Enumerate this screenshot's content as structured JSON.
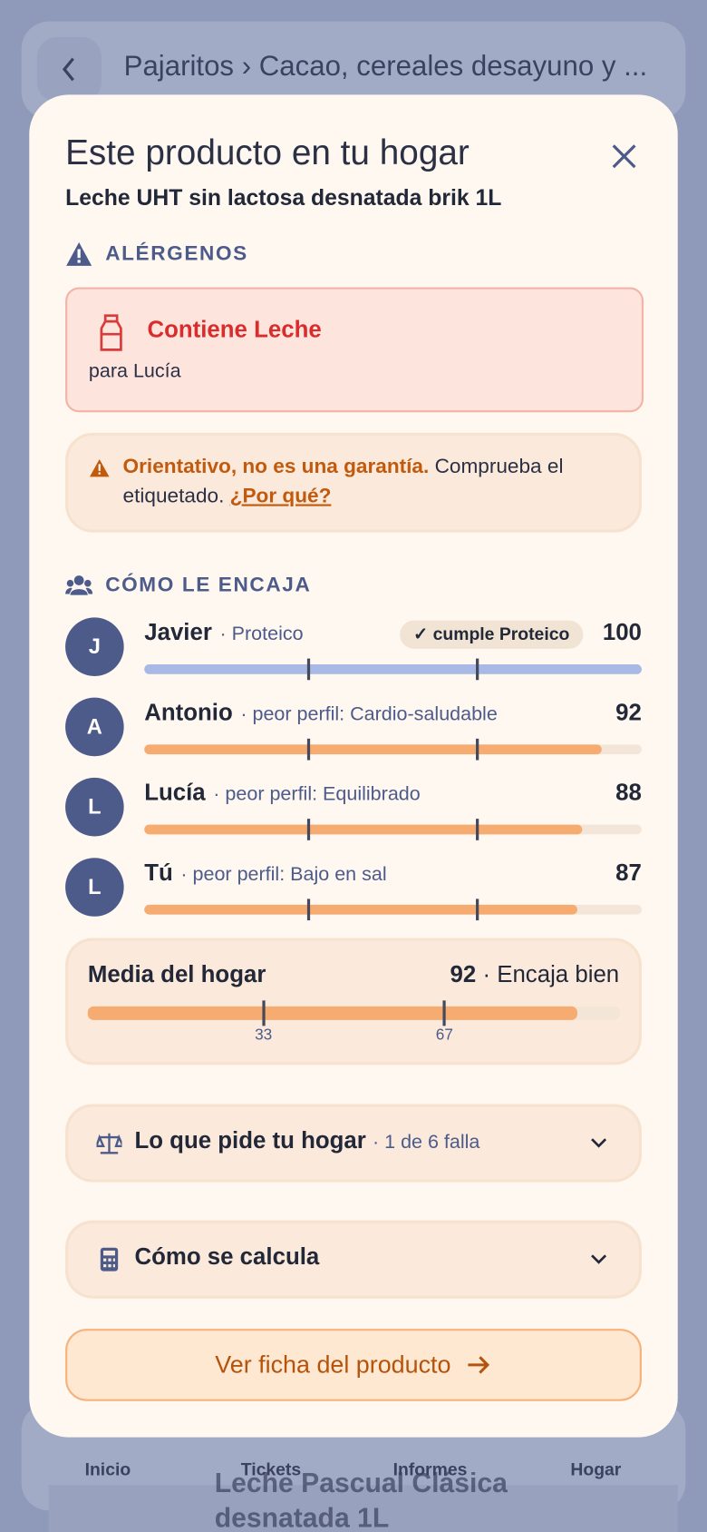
{
  "background": {
    "breadcrumb": "Pajaritos › Cacao, cereales desayuno y ...",
    "nav": [
      "Inicio",
      "Tickets",
      "Informes",
      "Hogar"
    ],
    "product": "Leche Pascual Clásica desnatada 1L"
  },
  "modal": {
    "title": "Este producto en tu hogar",
    "product": "Leche UHT sin lactosa desnatada brik 1L",
    "allergens": {
      "heading": "ALÉRGENOS",
      "alert": "Contiene Leche",
      "for": "para Lucía"
    },
    "notice": {
      "strong": "Orientativo, no es una garantía.",
      "text": "Comprueba el etiquetado.",
      "link": "¿Por qué?"
    },
    "fit": {
      "heading": "CÓMO LE ENCAJA",
      "range": [
        0,
        100
      ],
      "thresholds": [
        33,
        67
      ],
      "members": [
        {
          "initial": "J",
          "name": "Javier",
          "profile": "· Proteico",
          "badge": "✓ cumple Proteico",
          "score": 100,
          "color": "#a8b9e6"
        },
        {
          "initial": "A",
          "name": "Antonio",
          "profile": "· peor perfil: Cardio-saludable",
          "score": 92,
          "color": "#f6ab70"
        },
        {
          "initial": "L",
          "name": "Lucía",
          "profile": "· peor perfil: Equilibrado",
          "score": 88,
          "color": "#f6ab70"
        },
        {
          "initial": "L",
          "name": "Tú",
          "profile": "· peor perfil: Bajo en sal",
          "score": 87,
          "color": "#f6ab70"
        }
      ]
    },
    "average": {
      "label": "Media del hogar",
      "score": 92,
      "verdict": "· Encaja bien",
      "color": "#f6ab70"
    },
    "sections": [
      {
        "title": "Lo que pide tu hogar",
        "meta": "· 1 de 6 falla"
      },
      {
        "title": "Cómo se calcula"
      }
    ],
    "cta": "Ver ficha del producto"
  }
}
